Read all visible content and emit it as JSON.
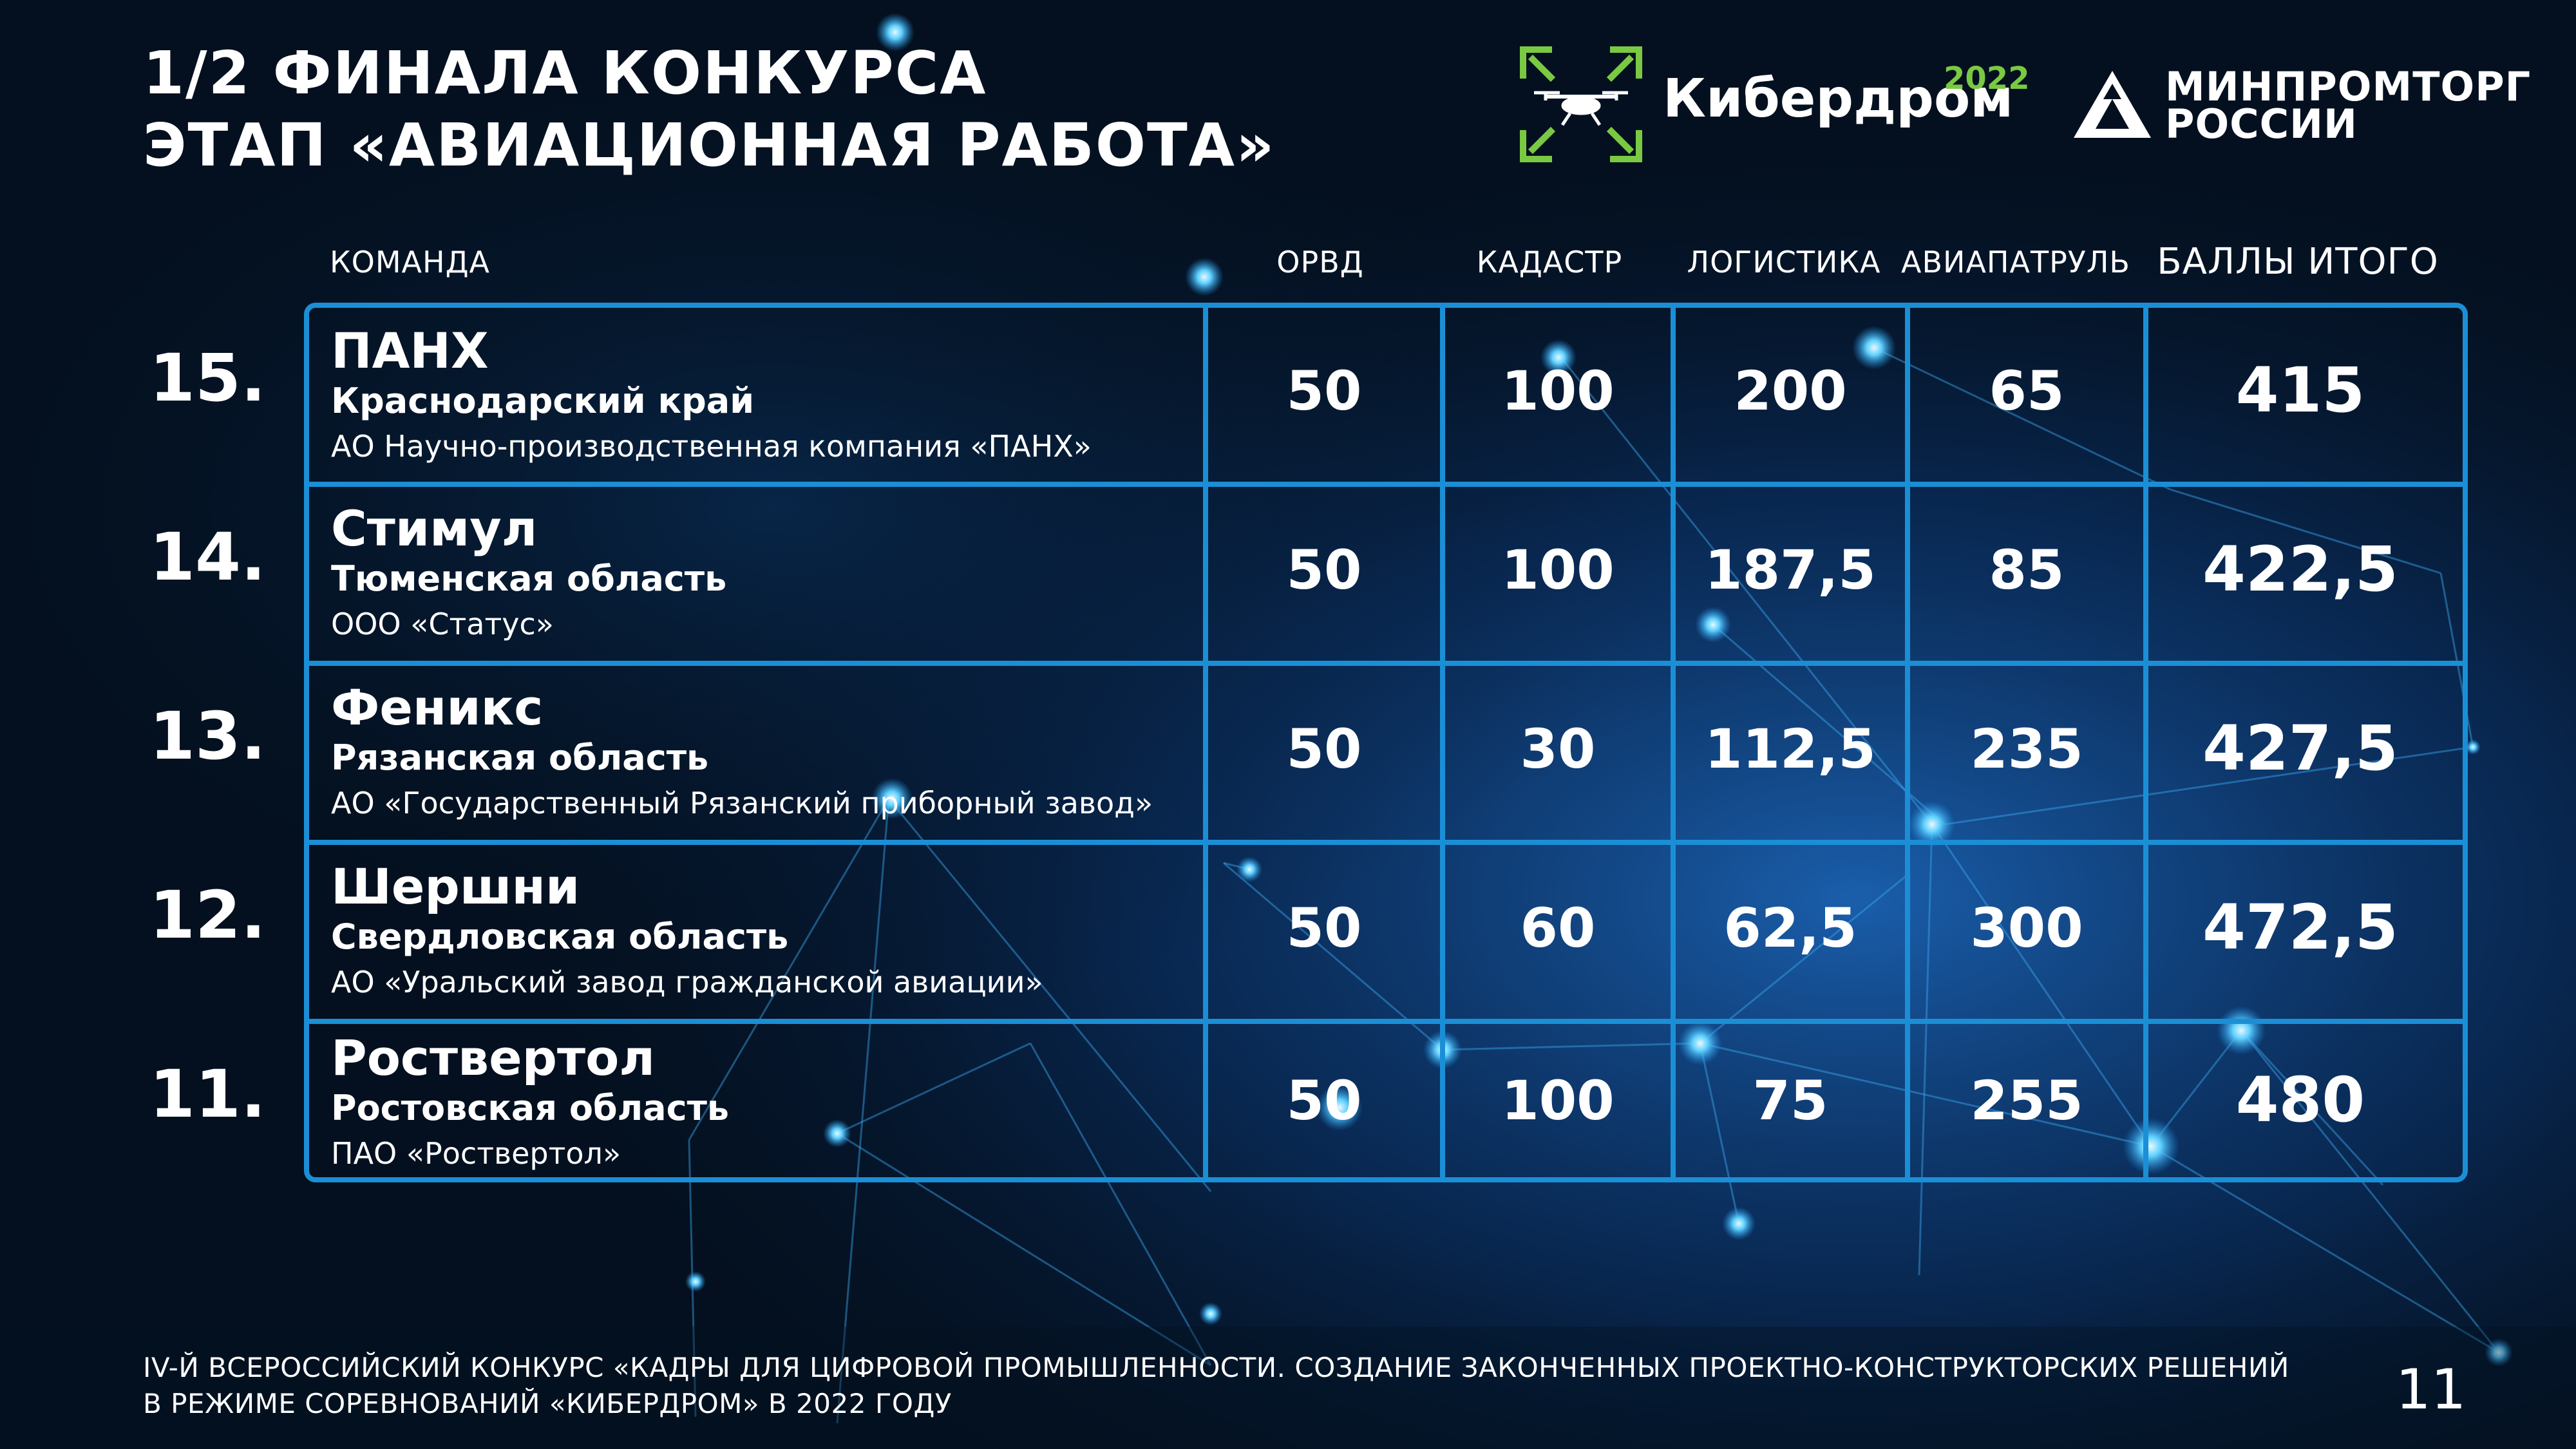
{
  "title": {
    "line1": "1/2 ФИНАЛА КОНКУРСА",
    "line2": "ЭТАП «АВИАЦИОННАЯ РАБОТА»"
  },
  "logos": {
    "kiberdrom": {
      "name": "Кибердром",
      "year": "2022",
      "icon": "drone-icon",
      "accent": "#7ac943"
    },
    "minpromtorg": {
      "line1": "МИНПРОМТОРГ",
      "line2": "РОССИИ",
      "icon": "triangle-emblem-icon"
    }
  },
  "table": {
    "headers": {
      "team": "КОМАНДА",
      "orvd": "ОРВД",
      "kadastr": "КАДАСТР",
      "logistika": "ЛОГИСТИКА",
      "aviapatrul": "АВИАПАТРУЛЬ",
      "total": "БАЛЛЫ ИТОГО"
    },
    "rows": [
      {
        "place": "15.",
        "team": "ПАНХ",
        "region": "Краснодарский край",
        "org": "АО Научно-производственная компания «ПАНХ»",
        "orvd": "50",
        "kadastr": "100",
        "logistika": "200",
        "aviapatrul": "65",
        "total": "415"
      },
      {
        "place": "14.",
        "team": "Стимул",
        "region": "Тюменская область",
        "org": "ООО «Статус»",
        "orvd": "50",
        "kadastr": "100",
        "logistika": "187,5",
        "aviapatrul": "85",
        "total": "422,5"
      },
      {
        "place": "13.",
        "team": "Феникс",
        "region": "Рязанская область",
        "org": "АО «Государственный Рязанский приборный завод»",
        "orvd": "50",
        "kadastr": "30",
        "logistika": "112,5",
        "aviapatrul": "235",
        "total": "427,5"
      },
      {
        "place": "12.",
        "team": "Шершни",
        "region": "Свердловская область",
        "org": "АО «Уральский завод гражданской авиации»",
        "orvd": "50",
        "kadastr": "60",
        "logistika": "62,5",
        "aviapatrul": "300",
        "total": "472,5"
      },
      {
        "place": "11.",
        "team": "Роствертол",
        "region": "Ростовская область",
        "org": "ПАО «Роствертол»",
        "orvd": "50",
        "kadastr": "100",
        "logistika": "75",
        "aviapatrul": "255",
        "total": "480"
      }
    ]
  },
  "footer": {
    "line1": "IV-Й ВСЕРОССИЙСКИЙ КОНКУРС «КАДРЫ ДЛЯ ЦИФРОВОЙ ПРОМЫШЛЕННОСТИ. СОЗДАНИЕ ЗАКОНЧЕННЫХ ПРОЕКТНО-КОНСТРУКТОРСКИХ РЕШЕНИЙ",
    "line2": "В РЕЖИМЕ СОРЕВНОВАНИЙ «КИБЕРДРОМ» В 2022 ГОДУ",
    "page": "11"
  },
  "colors": {
    "background": "#04101f",
    "table_border": "#1b8fd6",
    "accent_green": "#7ac943"
  }
}
